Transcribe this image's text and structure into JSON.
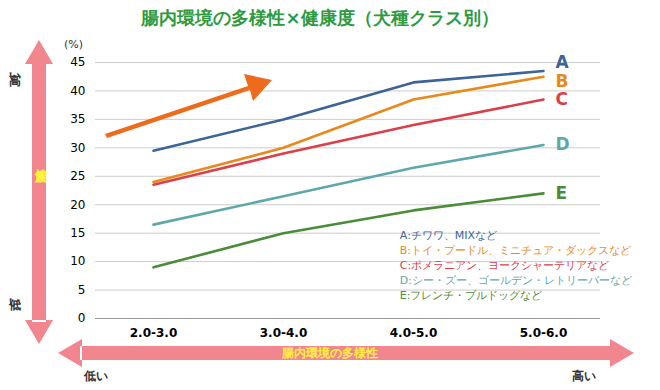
{
  "chart_data": {
    "type": "line",
    "title": "腸内環境の多様性×健康度（犬種クラス別）",
    "xlabel": "腸内環境の多様性",
    "ylabel": "健康度",
    "annotations": {
      "y_unit": "(%)",
      "y_high": "高い",
      "y_low": "低い",
      "x_low": "低い",
      "x_high": "高い"
    },
    "categories": [
      "2.0-3.0",
      "3.0-4.0",
      "4.0-5.0",
      "5.0-6.0"
    ],
    "series": [
      {
        "name": "A:チワワ、MIXなど",
        "label": "A",
        "color": "#3d6496",
        "values": [
          29.5,
          35,
          41.5,
          43.5
        ]
      },
      {
        "name": "B:トイ・プードル、ミニチュア・ダックスなど",
        "label": "B",
        "color": "#e8891c",
        "values": [
          24,
          30,
          38.5,
          42.5
        ]
      },
      {
        "name": "C:ポメラニアン、ヨークシャーテリアなど",
        "label": "C",
        "color": "#d9404a",
        "values": [
          23.5,
          29,
          34,
          38.5
        ]
      },
      {
        "name": "D:シー・ズー、ゴールデン・レトリーバーなど",
        "label": "D",
        "color": "#5fa8aa",
        "values": [
          16.5,
          21.5,
          26.5,
          30.5
        ]
      },
      {
        "name": "E:フレンチ・ブルドッグなど",
        "label": "E",
        "color": "#4a8c3a",
        "values": [
          9,
          15,
          19,
          22
        ]
      }
    ],
    "ylim": [
      0,
      45
    ],
    "yticks": [
      0,
      5,
      10,
      15,
      20,
      25,
      30,
      35,
      40,
      45
    ],
    "grid": true,
    "legend": "bottom-right"
  }
}
